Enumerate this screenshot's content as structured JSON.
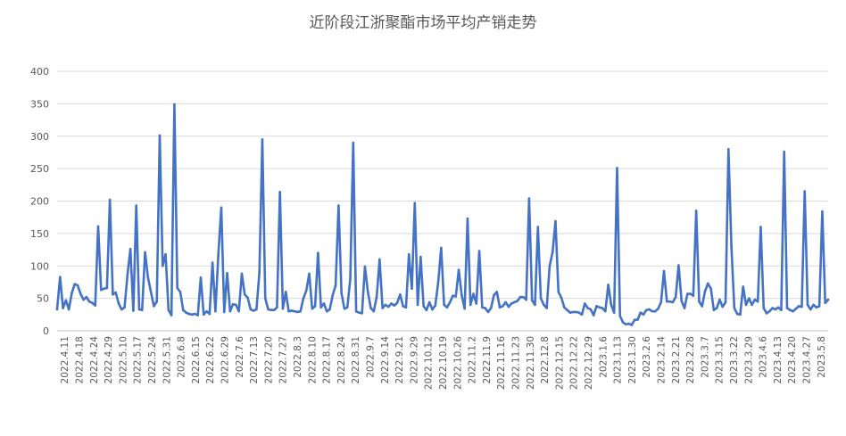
{
  "chart_data": {
    "type": "line",
    "title": "近阶段江浙聚酯市场平均产销走势",
    "xlabel": "",
    "ylabel": "",
    "ylim": [
      0,
      400
    ],
    "y_ticks": [
      "0",
      "50",
      "100",
      "150",
      "200",
      "250",
      "300",
      "350",
      "400"
    ],
    "grid": true,
    "legend": "none",
    "series_color": "#4472C4",
    "grid_color": "#D9D9D9",
    "x_tick_labels": [
      "2022.4.11",
      "2022.4.18",
      "2022.4.24",
      "2022.4.29",
      "2022.5.10",
      "2022.5.17",
      "2022.5.24",
      "2022.5.31",
      "2022.6.8",
      "2022.6.15",
      "2022.6.22",
      "2022.6.29",
      "2022.7.6",
      "2022.7.13",
      "2022.7.20",
      "2022.7.27",
      "2022.8.3",
      "2022.8.10",
      "2022.8.17",
      "2022.8.24",
      "2022.8.31",
      "2022.9.7",
      "2022.9.14",
      "2022.9.21",
      "2022.9.29",
      "2022.10.12",
      "2022.10.19",
      "2022.10.26",
      "2022.11.2",
      "2022.11.9",
      "2022.11.16",
      "2022.11.23",
      "2022.11.30",
      "2022.12.8",
      "2022.12.15",
      "2022.12.22",
      "2022.12.29",
      "2023.1.6",
      "2023.1.13",
      "2023.1.30",
      "2023.2.6",
      "2023.2.14",
      "2023.2.21",
      "2023.2.28",
      "2023.3.7",
      "2023.3.15",
      "2023.3.22",
      "2023.3.29",
      "2023.4.6",
      "2023.4.13",
      "2023.4.20",
      "2023.4.27",
      "2023.5.8"
    ],
    "series": [
      {
        "values": [
          33,
          83,
          35,
          47,
          33,
          58,
          72,
          70,
          57,
          48,
          52,
          45,
          43,
          39,
          161,
          63,
          65,
          66,
          202,
          56,
          59,
          42,
          33,
          36,
          86,
          126,
          31,
          193,
          33,
          32,
          121,
          82,
          60,
          38,
          45,
          301,
          100,
          118,
          32,
          24,
          349,
          66,
          60,
          32,
          28,
          26,
          25,
          26,
          24,
          82,
          25,
          30,
          26,
          105,
          30,
          118,
          190,
          29,
          89,
          30,
          41,
          40,
          30,
          88,
          56,
          51,
          33,
          31,
          33,
          90,
          295,
          50,
          33,
          32,
          32,
          36,
          214,
          34,
          60,
          30,
          31,
          30,
          29,
          30,
          50,
          62,
          88,
          34,
          38,
          120,
          36,
          42,
          30,
          33,
          55,
          70,
          193,
          58,
          34,
          36,
          80,
          290,
          30,
          28,
          27,
          99,
          60,
          35,
          30,
          52,
          110,
          35,
          40,
          37,
          42,
          39,
          43,
          56,
          38,
          36,
          118,
          65,
          197,
          40,
          114,
          38,
          32,
          44,
          33,
          39,
          75,
          128,
          40,
          36,
          44,
          54,
          53,
          94,
          55,
          34,
          173,
          40,
          57,
          42,
          123,
          36,
          35,
          29,
          35,
          55,
          60,
          36,
          38,
          44,
          37,
          42,
          44,
          46,
          52,
          52,
          48,
          204,
          47,
          40,
          160,
          50,
          40,
          35,
          100,
          121,
          169,
          60,
          51,
          36,
          32,
          28,
          29,
          29,
          28,
          25,
          42,
          35,
          33,
          24,
          38,
          36,
          35,
          30,
          71,
          40,
          28,
          251,
          23,
          13,
          10,
          11,
          9,
          17,
          17,
          28,
          25,
          32,
          33,
          30,
          30,
          34,
          44,
          92,
          45,
          45,
          44,
          52,
          101,
          46,
          35,
          57,
          57,
          54,
          185,
          45,
          38,
          61,
          73,
          65,
          32,
          35,
          48,
          37,
          44,
          280,
          130,
          35,
          26,
          25,
          68,
          40,
          50,
          40,
          48,
          45,
          160,
          35,
          27,
          30,
          35,
          33,
          36,
          32,
          276,
          35,
          32,
          30,
          34,
          38,
          37,
          215,
          40,
          33,
          40,
          36,
          38,
          184,
          43,
          48
        ]
      }
    ]
  }
}
